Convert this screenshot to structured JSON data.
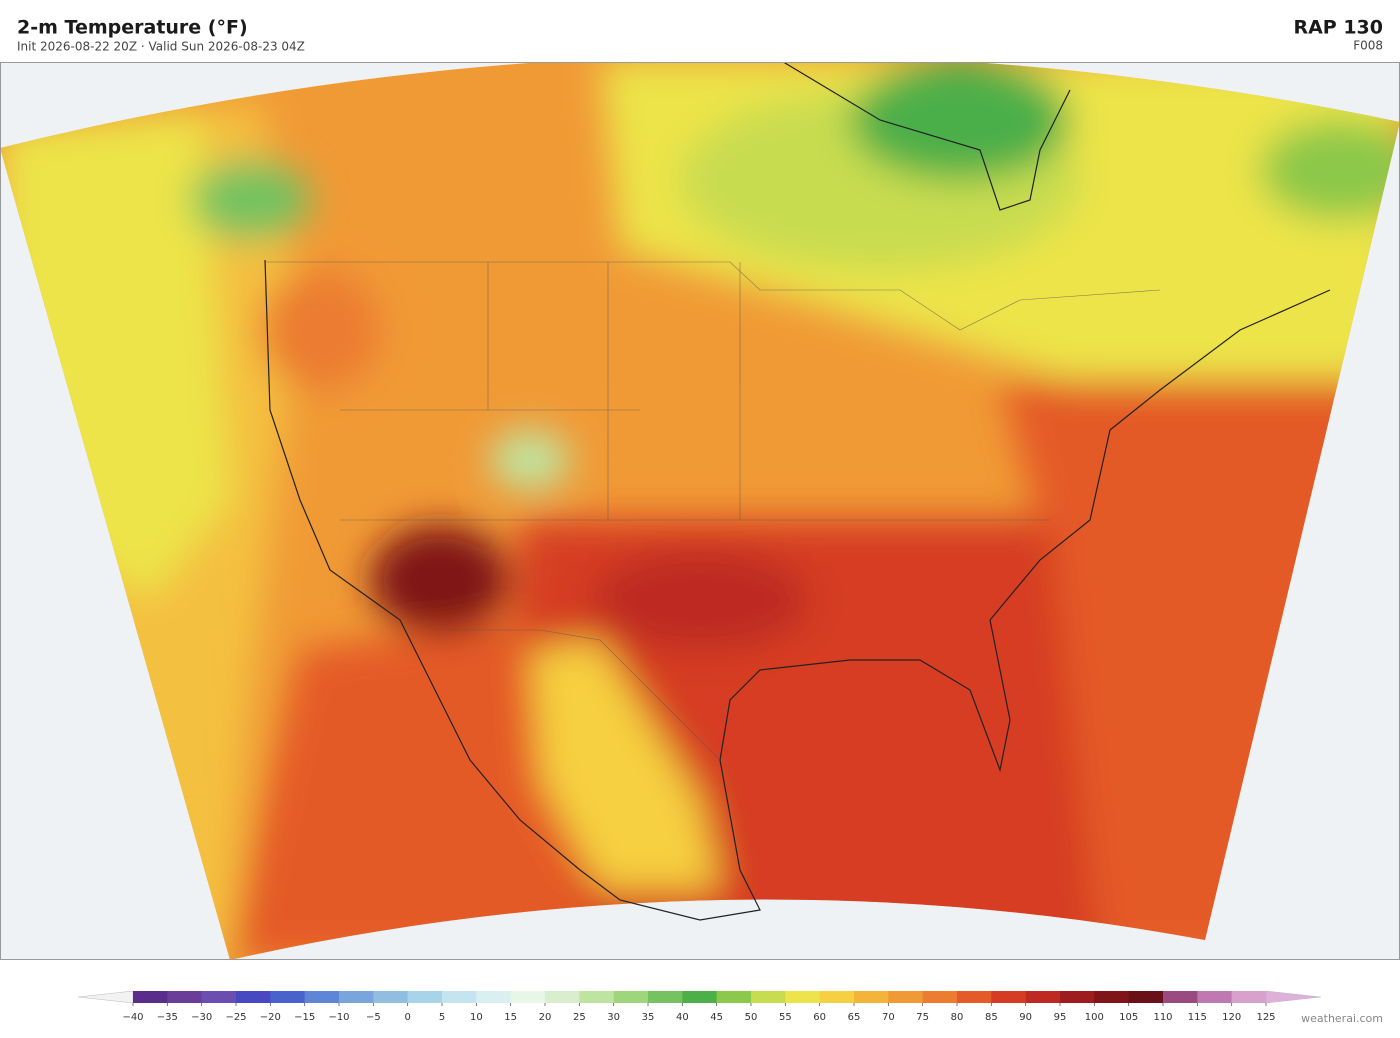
{
  "header": {
    "title": "2-m Temperature  (°F)",
    "subtitle": "Init 2026-08-22 20Z  ·  Valid Sun 2026-08-23 04Z",
    "model": "RAP  130",
    "forecast_hour": "F008"
  },
  "colorbar": {
    "ticks": [
      {
        "value": -40,
        "label": "−40"
      },
      {
        "value": -35,
        "label": "−35"
      },
      {
        "value": -30,
        "label": "−30"
      },
      {
        "value": -25,
        "label": "−25"
      },
      {
        "value": -20,
        "label": "−20"
      },
      {
        "value": -15,
        "label": "−15"
      },
      {
        "value": -10,
        "label": "−10"
      },
      {
        "value": -5,
        "label": "−5"
      },
      0,
      5,
      10,
      15,
      20,
      25,
      30,
      35,
      40,
      45,
      50,
      55,
      60,
      65,
      70,
      75,
      80,
      85,
      90,
      95,
      100,
      105,
      110,
      115,
      120,
      125
    ],
    "colors": [
      "#5a2d8c",
      "#6a3d9a",
      "#6b4fb0",
      "#4848c0",
      "#4a62cc",
      "#5f86d6",
      "#7aa4dc",
      "#90bde0",
      "#a8d4ea",
      "#c4e4f0",
      "#daf0f0",
      "#e8f6e8",
      "#d8eecc",
      "#bfe4a0",
      "#9fd67c",
      "#74c260",
      "#4caf48",
      "#8cc84a",
      "#c8dc50",
      "#ece44a",
      "#f6d040",
      "#f4b43a",
      "#f09a36",
      "#ec7c30",
      "#e45a28",
      "#d63c24",
      "#be2a22",
      "#9e1c1e",
      "#801418",
      "#6a1018",
      "#9a4a80",
      "#c078b0",
      "#d8a0cc"
    ],
    "under_color": "#f2f2f2",
    "over_color": "#e0b0dc"
  },
  "watermark": "weatherai.com"
}
